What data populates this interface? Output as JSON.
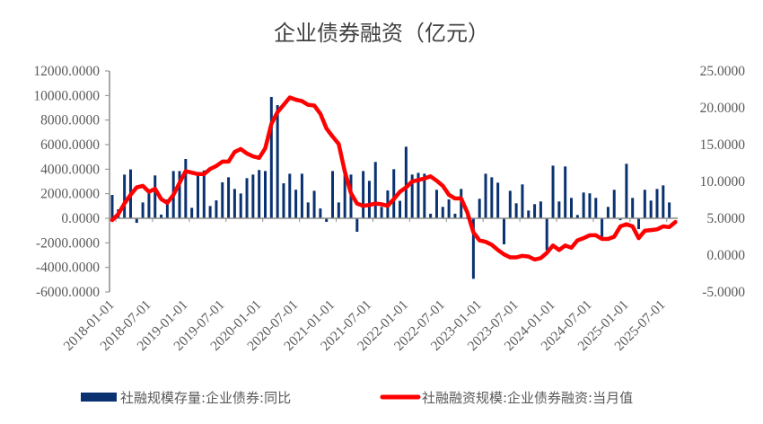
{
  "chart_data": {
    "type": "bar+line",
    "title": "企业债券融资（亿元）",
    "x_tick_labels": [
      "2018-01-01",
      "2018-07-01",
      "2019-01-01",
      "2019-07-01",
      "2020-01-01",
      "2020-07-01",
      "2021-01-01",
      "2021-07-01",
      "2022-01-01",
      "2022-07-01",
      "2023-01-01",
      "2023-07-01",
      "2024-01-01",
      "2024-07-01",
      "2025-01-01",
      "2025-07-01"
    ],
    "start_month": "2018-01",
    "left_axis": {
      "ylim": [
        -6000,
        12000
      ],
      "step": 2000,
      "tick_labels": [
        "12000.0000",
        "10000.0000",
        "8000.0000",
        "6000.0000",
        "4000.0000",
        "2000.0000",
        "0.0000",
        "-2000.0000",
        "-4000.0000",
        "-6000.0000"
      ]
    },
    "right_axis": {
      "ylim": [
        -5,
        25
      ],
      "step": 5,
      "tick_labels": [
        "25.0000",
        "20.0000",
        "15.0000",
        "10.0000",
        "5.0000",
        "0.0000",
        "-5.0000"
      ]
    },
    "grid": false,
    "legend_position": "bottom",
    "series": [
      {
        "name": "社融规模存量:企业债券:同比",
        "type": "bar",
        "axis": "right",
        "color": "#0b3270",
        "values": [
          4.76,
          5.57,
          7.0,
          8.2,
          9.2,
          9.4,
          8.6,
          9.0,
          7.6,
          7.1,
          8.2,
          9.8,
          11.4,
          11.2,
          11.0,
          11.0,
          11.7,
          12.1,
          12.7,
          12.7,
          14.0,
          14.4,
          13.8,
          13.4,
          13.2,
          14.5,
          17.8,
          19.4,
          20.4,
          21.4,
          21.1,
          20.9,
          20.4,
          20.3,
          19.2,
          17.2,
          16.1,
          15.1,
          11.3,
          8.4,
          7.0,
          6.7,
          6.8,
          7.0,
          6.9,
          6.7,
          7.6,
          8.6,
          9.2,
          10.0,
          10.2,
          10.4,
          10.7,
          10.1,
          9.4,
          8.2,
          7.7,
          7.7,
          5.8,
          3.1,
          2.0,
          1.8,
          1.4,
          0.7,
          0.1,
          -0.3,
          -0.3,
          -0.1,
          -0.2,
          -0.6,
          -0.4,
          0.3,
          1.3,
          0.7,
          1.3,
          1.0,
          2.0,
          2.3,
          2.7,
          2.7,
          2.2,
          2.2,
          2.5,
          3.9,
          4.2,
          3.9,
          2.3,
          3.3,
          3.4,
          3.5,
          3.9,
          3.8,
          4.5
        ]
      },
      {
        "name": "社融融资规模:企业债券融资:当月值",
        "type": "line",
        "axis": "left",
        "color": "#ff0000",
        "values": [
          1900,
          730,
          3560,
          3980,
          -370,
          1290,
          2020,
          3490,
          300,
          1540,
          3850,
          3850,
          4830,
          850,
          3490,
          3900,
          1000,
          1460,
          2930,
          3340,
          2390,
          2020,
          3270,
          3560,
          3930,
          3850,
          9880,
          9220,
          2850,
          3630,
          2330,
          3630,
          1290,
          2240,
          800,
          -290,
          3850,
          1290,
          3560,
          3560,
          -1100,
          3850,
          3050,
          4590,
          930,
          2270,
          4000,
          1420,
          5830,
          3560,
          3700,
          3630,
          370,
          2320,
          930,
          1540,
          370,
          2390,
          100,
          -4930,
          1590,
          3630,
          3340,
          2900,
          -2120,
          2240,
          1220,
          2760,
          630,
          1150,
          1370,
          -2610,
          4290,
          1370,
          4220,
          1660,
          270,
          2100,
          2030,
          1660,
          -1510,
          930,
          2320,
          -150,
          4440,
          1660,
          -880,
          2320,
          1440,
          2390,
          2680,
          1290
        ]
      }
    ]
  }
}
